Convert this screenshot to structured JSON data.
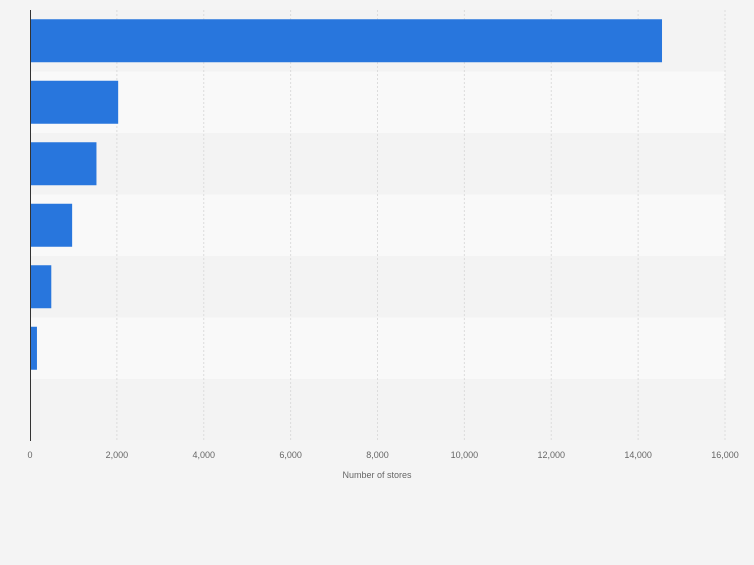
{
  "chart_data": {
    "type": "bar",
    "orientation": "horizontal",
    "categories": [
      "",
      "",
      "",
      "",
      "",
      ""
    ],
    "values": [
      14550,
      2030,
      1530,
      970,
      490,
      160
    ],
    "xlabel": "Number of stores",
    "ylabel": "",
    "xlim": [
      0,
      16000
    ],
    "x_ticks": [
      0,
      2000,
      4000,
      6000,
      8000,
      10000,
      12000,
      14000,
      16000
    ],
    "x_tick_labels": [
      "0",
      "2,000",
      "4,000",
      "6,000",
      "8,000",
      "10,000",
      "12,000",
      "14,000",
      "16,000"
    ],
    "grid": true,
    "legend": "none",
    "colors": {
      "bar": "#2876dd",
      "background": "#f4f4f4",
      "band_light": "#f9f9f9",
      "band_dark": "#f3f3f3",
      "grid": "#dcdcdc",
      "axis": "#333333",
      "text": "#666666"
    }
  }
}
